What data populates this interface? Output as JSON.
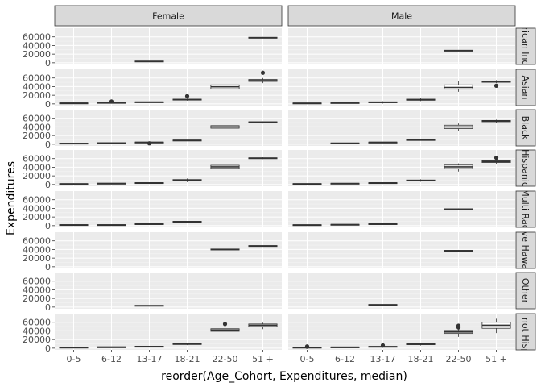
{
  "chart_data": {
    "type": "boxplot",
    "xlabel": "reorder(Age_Cohort, Expenditures, median)",
    "ylabel": "Expenditures",
    "categories": [
      "0-5",
      "6-12",
      "13-17",
      "18-21",
      "22-50",
      "51 +"
    ],
    "yticks": [
      0,
      20000,
      40000,
      60000
    ],
    "ylim": [
      -4000,
      80000
    ],
    "columns": [
      "Female",
      "Male"
    ],
    "rows": [
      "American Indian",
      "Asian",
      "Black",
      "Hispanic",
      "Multi Race",
      "Native Hawaiian",
      "Other",
      "White not Hispanic"
    ],
    "rows_visible": [
      "rican Ind",
      "Asian",
      "Black",
      "Hispanic",
      "Multi Rac",
      "ve Hawa",
      "Other",
      "e not Hisp"
    ],
    "colors": {
      "panel_bg": "#ebebeb",
      "grid_major": "#ffffff",
      "strip_bg": "#d9d9d9",
      "box_fill": "#ffffff",
      "box_stroke": "#333333",
      "text": "#4d4d4d"
    },
    "panels": [
      {
        "row": "American Indian",
        "column": "Female",
        "boxes": [
          {
            "category": "13-17",
            "min": 3000,
            "q1": 3000,
            "median": 3000,
            "q3": 3000,
            "max": 3000,
            "outliers": []
          },
          {
            "category": "51 +",
            "min": 58000,
            "q1": 58000,
            "median": 58000,
            "q3": 58000,
            "max": 58000,
            "outliers": []
          }
        ]
      },
      {
        "row": "American Indian",
        "column": "Male",
        "boxes": [
          {
            "category": "22-50",
            "min": 28000,
            "q1": 28000,
            "median": 28000,
            "q3": 28000,
            "max": 28000,
            "outliers": []
          }
        ]
      },
      {
        "row": "Asian",
        "column": "Female",
        "boxes": [
          {
            "category": "0-5",
            "min": 500,
            "q1": 1200,
            "median": 1700,
            "q3": 2300,
            "max": 3000,
            "outliers": []
          },
          {
            "category": "6-12",
            "min": 1000,
            "q1": 1900,
            "median": 2600,
            "q3": 3400,
            "max": 4500,
            "outliers": [
              5500
            ]
          },
          {
            "category": "13-17",
            "min": 2600,
            "q1": 3400,
            "median": 4000,
            "q3": 4800,
            "max": 5500,
            "outliers": []
          },
          {
            "category": "18-21",
            "min": 7500,
            "q1": 9000,
            "median": 10000,
            "q3": 11000,
            "max": 12500,
            "outliers": [
              18000
            ]
          },
          {
            "category": "22-50",
            "min": 28000,
            "q1": 35000,
            "median": 39500,
            "q3": 44000,
            "max": 50000,
            "outliers": []
          },
          {
            "category": "51 +",
            "min": 48000,
            "q1": 52000,
            "median": 54000,
            "q3": 56500,
            "max": 60000,
            "outliers": [
              72000
            ]
          }
        ]
      },
      {
        "row": "Asian",
        "column": "Male",
        "boxes": [
          {
            "category": "0-5",
            "min": 400,
            "q1": 1100,
            "median": 1500,
            "q3": 2000,
            "max": 2600,
            "outliers": []
          },
          {
            "category": "6-12",
            "min": 1000,
            "q1": 1700,
            "median": 2300,
            "q3": 3000,
            "max": 3800,
            "outliers": []
          },
          {
            "category": "13-17",
            "min": 1000,
            "q1": 2500,
            "median": 3500,
            "q3": 4800,
            "max": 6000,
            "outliers": []
          },
          {
            "category": "18-21",
            "min": 6500,
            "q1": 8500,
            "median": 9500,
            "q3": 11000,
            "max": 13000,
            "outliers": []
          },
          {
            "category": "22-50",
            "min": 28000,
            "q1": 34000,
            "median": 38000,
            "q3": 44000,
            "max": 52000,
            "outliers": []
          },
          {
            "category": "51 +",
            "min": 48000,
            "q1": 50000,
            "median": 51500,
            "q3": 53000,
            "max": 55000,
            "outliers": [
              42000
            ]
          }
        ]
      },
      {
        "row": "Black",
        "column": "Female",
        "boxes": [
          {
            "category": "0-5",
            "min": 1000,
            "q1": 1400,
            "median": 1700,
            "q3": 2000,
            "max": 2300,
            "outliers": []
          },
          {
            "category": "6-12",
            "min": 1800,
            "q1": 2300,
            "median": 2600,
            "q3": 3000,
            "max": 3400,
            "outliers": []
          },
          {
            "category": "13-17",
            "min": 2500,
            "q1": 3500,
            "median": 4200,
            "q3": 5000,
            "max": 6000,
            "outliers": [
              2000
            ]
          },
          {
            "category": "18-21",
            "min": 8000,
            "q1": 8500,
            "median": 9000,
            "q3": 9500,
            "max": 10000,
            "outliers": []
          },
          {
            "category": "22-50",
            "min": 33000,
            "q1": 37000,
            "median": 40000,
            "q3": 43000,
            "max": 47000,
            "outliers": []
          },
          {
            "category": "51 +",
            "min": 48000,
            "q1": 49500,
            "median": 51000,
            "q3": 52000,
            "max": 53000,
            "outliers": []
          }
        ]
      },
      {
        "row": "Black",
        "column": "Male",
        "boxes": [
          {
            "category": "6-12",
            "min": 1500,
            "q1": 1900,
            "median": 2200,
            "q3": 2600,
            "max": 3000,
            "outliers": []
          },
          {
            "category": "13-17",
            "min": 3300,
            "q1": 3800,
            "median": 4200,
            "q3": 4700,
            "max": 5200,
            "outliers": []
          },
          {
            "category": "18-21",
            "min": 8500,
            "q1": 9300,
            "median": 10000,
            "q3": 10800,
            "max": 11500,
            "outliers": []
          },
          {
            "category": "22-50",
            "min": 30000,
            "q1": 36000,
            "median": 40000,
            "q3": 44000,
            "max": 48000,
            "outliers": []
          },
          {
            "category": "51 +",
            "min": 50000,
            "q1": 52000,
            "median": 53500,
            "q3": 55000,
            "max": 57000,
            "outliers": []
          }
        ]
      },
      {
        "row": "Hispanic",
        "column": "Female",
        "boxes": [
          {
            "category": "0-5",
            "min": 300,
            "q1": 1000,
            "median": 1500,
            "q3": 2100,
            "max": 2800,
            "outliers": []
          },
          {
            "category": "6-12",
            "min": 1300,
            "q1": 1900,
            "median": 2400,
            "q3": 2900,
            "max": 3500,
            "outliers": []
          },
          {
            "category": "13-17",
            "min": 2500,
            "q1": 3300,
            "median": 3900,
            "q3": 4500,
            "max": 5200,
            "outliers": []
          },
          {
            "category": "18-21",
            "min": 5500,
            "q1": 8000,
            "median": 9500,
            "q3": 11500,
            "max": 14000,
            "outliers": []
          },
          {
            "category": "22-50",
            "min": 31000,
            "q1": 37500,
            "median": 41000,
            "q3": 44500,
            "max": 48000,
            "outliers": []
          },
          {
            "category": "51 +",
            "min": 59000,
            "q1": 60000,
            "median": 61000,
            "q3": 62000,
            "max": 63000,
            "outliers": []
          }
        ]
      },
      {
        "row": "Hispanic",
        "column": "Male",
        "boxes": [
          {
            "category": "0-5",
            "min": 500,
            "q1": 1100,
            "median": 1500,
            "q3": 2000,
            "max": 2600,
            "outliers": []
          },
          {
            "category": "6-12",
            "min": 1300,
            "q1": 1900,
            "median": 2300,
            "q3": 2800,
            "max": 3400,
            "outliers": []
          },
          {
            "category": "13-17",
            "min": 2500,
            "q1": 3200,
            "median": 3800,
            "q3": 4400,
            "max": 5000,
            "outliers": []
          },
          {
            "category": "18-21",
            "min": 6500,
            "q1": 8200,
            "median": 9300,
            "q3": 10500,
            "max": 12000,
            "outliers": []
          },
          {
            "category": "22-50",
            "min": 30000,
            "q1": 37000,
            "median": 41000,
            "q3": 45000,
            "max": 49000,
            "outliers": []
          },
          {
            "category": "51 +",
            "min": 47000,
            "q1": 51000,
            "median": 53000,
            "q3": 55000,
            "max": 57000,
            "outliers": [
              62000
            ]
          }
        ]
      },
      {
        "row": "Multi Race",
        "column": "Female",
        "boxes": [
          {
            "category": "0-5",
            "min": 1000,
            "q1": 1400,
            "median": 1800,
            "q3": 2200,
            "max": 2600,
            "outliers": []
          },
          {
            "category": "6-12",
            "min": 800,
            "q1": 1300,
            "median": 1700,
            "q3": 2100,
            "max": 2500,
            "outliers": []
          },
          {
            "category": "13-17",
            "min": 3000,
            "q1": 3500,
            "median": 4000,
            "q3": 4500,
            "max": 5000,
            "outliers": []
          },
          {
            "category": "18-21",
            "min": 8500,
            "q1": 9000,
            "median": 9500,
            "q3": 10000,
            "max": 10500,
            "outliers": []
          }
        ]
      },
      {
        "row": "Multi Race",
        "column": "Male",
        "boxes": [
          {
            "category": "0-5",
            "min": 800,
            "q1": 1200,
            "median": 1600,
            "q3": 2000,
            "max": 2400,
            "outliers": []
          },
          {
            "category": "6-12",
            "min": 1500,
            "q1": 2000,
            "median": 2500,
            "q3": 3000,
            "max": 3500,
            "outliers": []
          },
          {
            "category": "13-17",
            "min": 3000,
            "q1": 3500,
            "median": 4000,
            "q3": 4500,
            "max": 5000,
            "outliers": []
          },
          {
            "category": "22-50",
            "min": 38000,
            "q1": 38000,
            "median": 38000,
            "q3": 38000,
            "max": 38000,
            "outliers": []
          }
        ]
      },
      {
        "row": "Native Hawaiian",
        "column": "Female",
        "boxes": [
          {
            "category": "22-50",
            "min": 40000,
            "q1": 40000,
            "median": 40000,
            "q3": 40000,
            "max": 40000,
            "outliers": []
          },
          {
            "category": "51 +",
            "min": 48000,
            "q1": 48000,
            "median": 48000,
            "q3": 48000,
            "max": 48000,
            "outliers": []
          }
        ]
      },
      {
        "row": "Native Hawaiian",
        "column": "Male",
        "boxes": [
          {
            "category": "22-50",
            "min": 37000,
            "q1": 37000,
            "median": 37000,
            "q3": 37000,
            "max": 37000,
            "outliers": []
          }
        ]
      },
      {
        "row": "Other",
        "column": "Female",
        "boxes": [
          {
            "category": "13-17",
            "min": 3000,
            "q1": 3000,
            "median": 3000,
            "q3": 3000,
            "max": 3000,
            "outliers": []
          }
        ]
      },
      {
        "row": "Other",
        "column": "Male",
        "boxes": [
          {
            "category": "13-17",
            "min": 5000,
            "q1": 5000,
            "median": 5000,
            "q3": 5000,
            "max": 5000,
            "outliers": []
          }
        ]
      },
      {
        "row": "White not Hispanic",
        "column": "Female",
        "boxes": [
          {
            "category": "0-5",
            "min": 700,
            "q1": 1200,
            "median": 1600,
            "q3": 2000,
            "max": 2500,
            "outliers": []
          },
          {
            "category": "6-12",
            "min": 1300,
            "q1": 1900,
            "median": 2400,
            "q3": 2900,
            "max": 3500,
            "outliers": []
          },
          {
            "category": "13-17",
            "min": 2500,
            "q1": 3300,
            "median": 3800,
            "q3": 4400,
            "max": 5000,
            "outliers": []
          },
          {
            "category": "18-21",
            "min": 7000,
            "q1": 8500,
            "median": 9500,
            "q3": 10800,
            "max": 12000,
            "outliers": []
          },
          {
            "category": "22-50",
            "min": 33000,
            "q1": 39000,
            "median": 42000,
            "q3": 45000,
            "max": 49000,
            "outliers": [
              56000
            ]
          },
          {
            "category": "51 +",
            "min": 44000,
            "q1": 50000,
            "median": 53000,
            "q3": 56000,
            "max": 59000,
            "outliers": []
          }
        ]
      },
      {
        "row": "White not Hispanic",
        "column": "Male",
        "boxes": [
          {
            "category": "0-5",
            "min": 500,
            "q1": 1100,
            "median": 1500,
            "q3": 2000,
            "max": 2700,
            "outliers": [
              3200,
              4000
            ]
          },
          {
            "category": "6-12",
            "min": 1000,
            "q1": 1700,
            "median": 2100,
            "q3": 2600,
            "max": 3300,
            "outliers": []
          },
          {
            "category": "13-17",
            "min": 1000,
            "q1": 2500,
            "median": 3300,
            "q3": 4200,
            "max": 5200,
            "outliers": [
              6500
            ]
          },
          {
            "category": "18-21",
            "min": 6000,
            "q1": 8000,
            "median": 9300,
            "q3": 10800,
            "max": 12500,
            "outliers": []
          },
          {
            "category": "22-50",
            "min": 26000,
            "q1": 34000,
            "median": 37500,
            "q3": 41000,
            "max": 45000,
            "outliers": [
              48000,
              50000,
              52000
            ]
          },
          {
            "category": "51 +",
            "min": 35000,
            "q1": 46000,
            "median": 53000,
            "q3": 60000,
            "max": 68000,
            "outliers": []
          }
        ]
      }
    ]
  }
}
